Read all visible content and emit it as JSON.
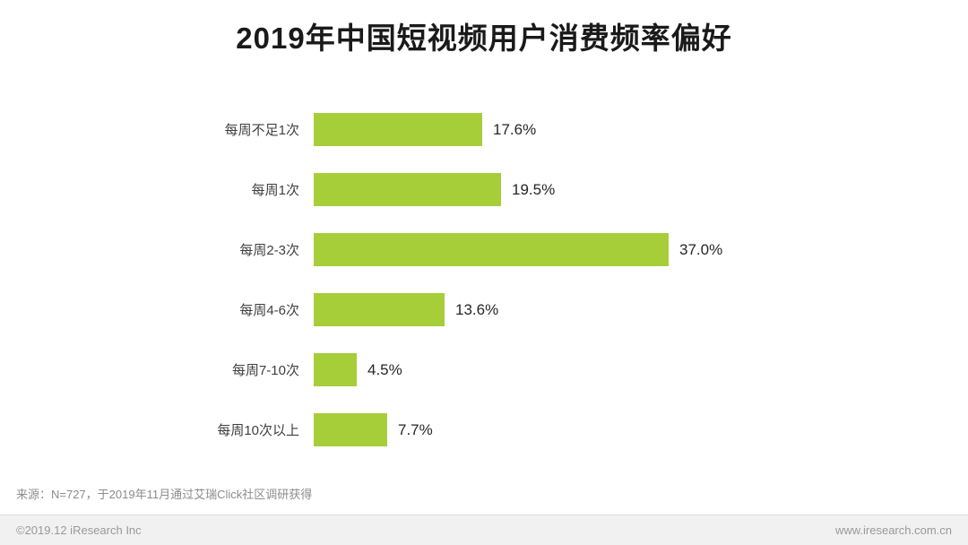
{
  "title": "2019年中国短视频用户消费频率偏好",
  "source_note": "来源：N=727，于2019年11月通过艾瑞Click社区调研获得",
  "footer": {
    "copyright": "©2019.12 iResearch Inc",
    "website": "www.iresearch.com.cn"
  },
  "colors": {
    "bar": "#A6CE39",
    "title_text": "#1a1a1a",
    "category_text": "#404040",
    "value_text": "#262626",
    "footer_text": "#999999"
  },
  "chart_data": {
    "type": "bar",
    "orientation": "horizontal",
    "title": "2019年中国短视频用户消费频率偏好",
    "categories": [
      "每周不足1次",
      "每周1次",
      "每周2-3次",
      "每周4-6次",
      "每周7-10次",
      "每周10次以上"
    ],
    "values": [
      17.6,
      19.5,
      37.0,
      13.6,
      4.5,
      7.7
    ],
    "value_labels": [
      "17.6%",
      "19.5%",
      "37.0%",
      "13.6%",
      "4.5%",
      "7.7%"
    ],
    "xlabel": "",
    "ylabel": "",
    "xlim": [
      0,
      40
    ],
    "grid": false,
    "legend": "none",
    "value_labels_position": "right-of-bar"
  }
}
